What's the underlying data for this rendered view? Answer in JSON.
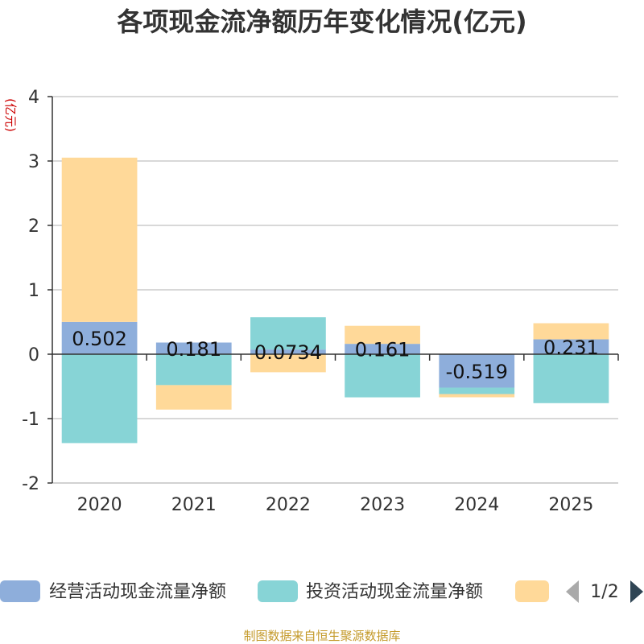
{
  "chart_data": {
    "type": "bar",
    "stacked": true,
    "title": "各项现金流净额历年变化情况(亿元)",
    "ylabel": "(亿元)",
    "xlabel": "",
    "categories": [
      "2020",
      "2021",
      "2022",
      "2023",
      "2024",
      "2025"
    ],
    "ylim": [
      -2,
      4
    ],
    "yticks": [
      "-2",
      "-1",
      "0",
      "1",
      "2",
      "3",
      "4"
    ],
    "grid": true,
    "legend_position": "bottom",
    "series": [
      {
        "name": "经营活动现金流量净额",
        "color": "#8eaedb",
        "values": [
          0.502,
          0.181,
          0.0734,
          0.161,
          -0.519,
          0.231
        ],
        "labels": [
          "0.502",
          "0.181",
          "0.0734",
          "0.161",
          "-0.519",
          "0.231"
        ]
      },
      {
        "name": "投资活动现金流量净额",
        "color": "#87d4d6",
        "values": [
          -1.38,
          -0.48,
          0.5,
          -0.67,
          -0.1,
          -0.76
        ]
      },
      {
        "name": "",
        "color": "#ffd999",
        "values": [
          2.55,
          -0.38,
          -0.28,
          0.28,
          -0.05,
          0.25
        ]
      }
    ]
  },
  "legend": {
    "page": "1/2"
  },
  "source": "制图数据来自恒生聚源数据库"
}
